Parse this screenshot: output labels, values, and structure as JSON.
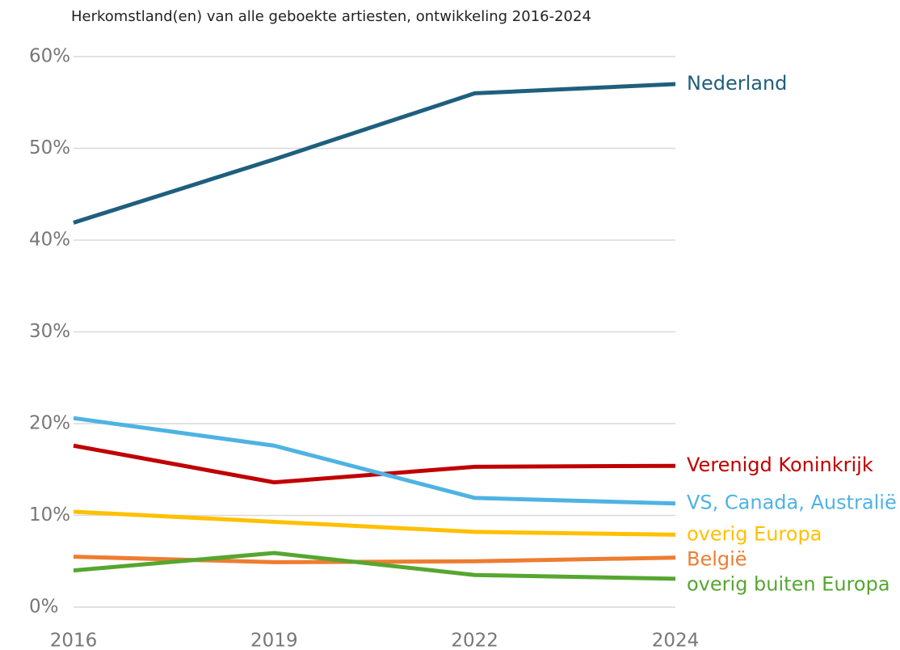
{
  "chart_data": {
    "type": "line",
    "title": "Herkomstland(en) van alle geboekte artiesten, ontwikkeling 2016-2024",
    "categories": [
      "2016",
      "2019",
      "2022",
      "2024"
    ],
    "series": [
      {
        "name": "Nederland",
        "color": "#1f5f7e",
        "values": [
          41.9,
          48.8,
          56.0,
          57.0
        ]
      },
      {
        "name": "Verenigd Koninkrijk",
        "color": "#c00000",
        "values": [
          17.6,
          13.6,
          15.3,
          15.4
        ]
      },
      {
        "name": "VS, Canada, Australië",
        "color": "#4eb3e3",
        "values": [
          20.6,
          17.6,
          11.9,
          11.3
        ]
      },
      {
        "name": "overig Europa",
        "color": "#ffc000",
        "values": [
          10.4,
          9.3,
          8.2,
          7.9
        ]
      },
      {
        "name": "België",
        "color": "#ed7d31",
        "values": [
          5.5,
          4.9,
          5.0,
          5.4
        ]
      },
      {
        "name": "overig buiten Europa",
        "color": "#56a630",
        "values": [
          4.0,
          5.9,
          3.5,
          3.1
        ]
      }
    ],
    "ylim": [
      0,
      60
    ],
    "yticks": [
      {
        "value": 0,
        "label": "0%"
      },
      {
        "value": 10,
        "label": "10%"
      },
      {
        "value": 20,
        "label": "20%"
      },
      {
        "value": 30,
        "label": "30%"
      },
      {
        "value": 40,
        "label": "40%"
      },
      {
        "value": 50,
        "label": "50%"
      },
      {
        "value": 60,
        "label": "60%"
      }
    ],
    "grid": true
  }
}
